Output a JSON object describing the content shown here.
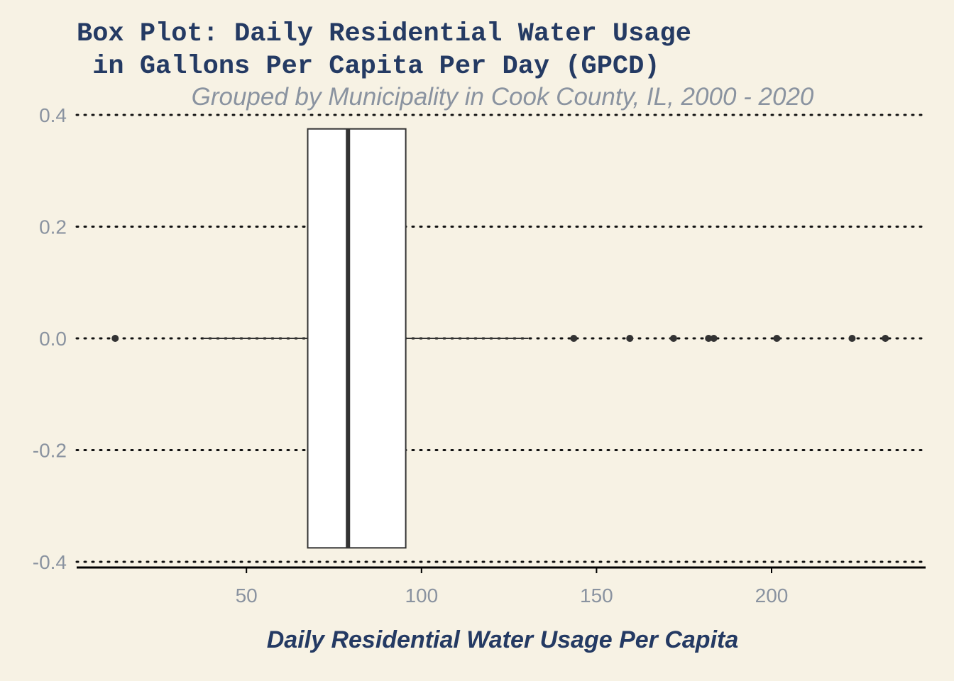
{
  "chart_data": {
    "type": "box",
    "title_lines": [
      "Box Plot: Daily Residential Water Usage",
      " in Gallons Per Capita Per Day (GPCD)"
    ],
    "subtitle": "Grouped by Municipality in Cook County, IL, 2000 - 2020",
    "xlabel": "Daily Residential Water Usage Per Capita",
    "ylabel": "",
    "xlim": [
      1.5,
      244
    ],
    "ylim": [
      -0.4,
      0.4
    ],
    "x_ticks": [
      50,
      100,
      150,
      200
    ],
    "y_ticks": [
      0.4,
      0.2,
      0.0,
      -0.2,
      -0.4
    ],
    "y_tick_labels": [
      "0.4",
      "0.2",
      "0.0",
      "-0.2",
      "-0.4"
    ],
    "grid": "horizontal dotted",
    "box": {
      "min": 37.5,
      "q1": 67.5,
      "median": 79,
      "q3": 95.5,
      "max": 130.5,
      "y_half_width": 0.375
    },
    "outliers": [
      12.5,
      143.5,
      159.5,
      172,
      182,
      183.5,
      201.5,
      223,
      232.5
    ],
    "colors": {
      "background": "#f7f2e4",
      "title": "#243a63",
      "subtitle": "#8a93a0",
      "tick": "#8a93a0",
      "box_fill": "#ffffff",
      "box_stroke": "#333333",
      "grid": "#111111"
    }
  }
}
